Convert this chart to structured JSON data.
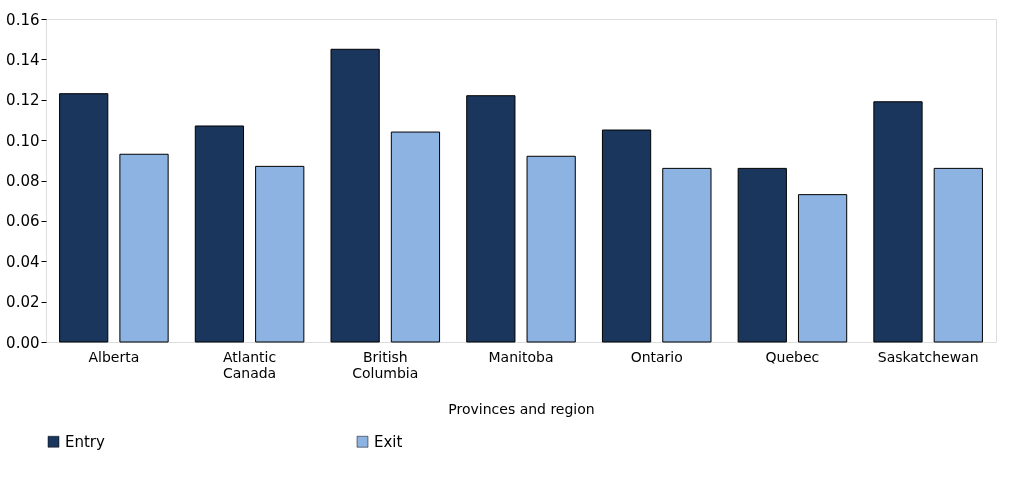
{
  "chart_data": {
    "type": "bar",
    "xlabel": "Provinces and region",
    "categories": [
      "Alberta",
      "Atlantic Canada",
      "British Columbia",
      "Manitoba",
      "Ontario",
      "Quebec",
      "Saskatchewan"
    ],
    "series": [
      {
        "name": "Entry",
        "color": "#1b365d",
        "values": [
          0.123,
          0.107,
          0.145,
          0.122,
          0.105,
          0.086,
          0.119
        ]
      },
      {
        "name": "Exit",
        "color": "#8db3e2",
        "values": [
          0.093,
          0.087,
          0.104,
          0.092,
          0.086,
          0.073,
          0.086
        ]
      }
    ],
    "ylim": [
      0,
      0.16
    ],
    "yticks": [
      {
        "value": 0,
        "label": "0.00"
      },
      {
        "value": 0.02,
        "label": "0.02"
      },
      {
        "value": 0.04,
        "label": "0.04"
      },
      {
        "value": 0.06,
        "label": "0.06"
      },
      {
        "value": 0.08,
        "label": "0.08"
      },
      {
        "value": 0.1,
        "label": "0.10"
      },
      {
        "value": 0.12,
        "label": "0.12"
      },
      {
        "value": 0.14,
        "label": "0.14"
      },
      {
        "value": 0.16,
        "label": "0.16"
      }
    ],
    "grid": false,
    "legend": "bottom"
  }
}
